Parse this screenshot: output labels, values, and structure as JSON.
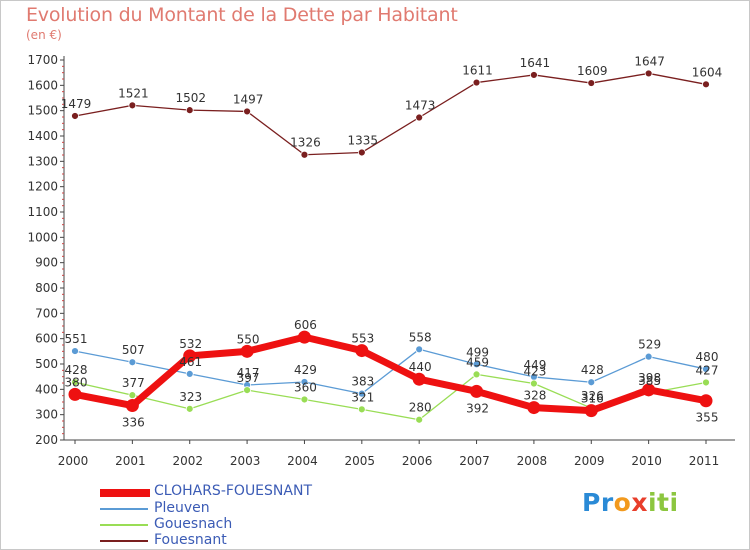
{
  "title": "Evolution du Montant de la Dette par Habitant",
  "subtitle": "(en €)",
  "logo": {
    "parts": [
      "Pr",
      "o",
      "x",
      "iti"
    ],
    "colors": [
      "#2a8ad6",
      "#f29a1e",
      "#e83e2b",
      "#8cc63f"
    ]
  },
  "chart_data": {
    "type": "line",
    "x": [
      "2000",
      "2001",
      "2002",
      "2003",
      "2004",
      "2005",
      "2006",
      "2007",
      "2008",
      "2009",
      "2010",
      "2011"
    ],
    "ylim": [
      200,
      1700
    ],
    "yticks": [
      "200",
      "300",
      "400",
      "500",
      "600",
      "700",
      "800",
      "900",
      "1000",
      "1100",
      "1200",
      "1300",
      "1400",
      "1500",
      "1600",
      "1700"
    ],
    "grid": false,
    "legend_position": "bottom-left",
    "series": [
      {
        "name": "CLOHARS-FOUESNANT",
        "color": "#ee1111",
        "values": [
          380,
          336,
          532,
          550,
          606,
          553,
          440,
          392,
          328,
          316,
          398,
          355
        ],
        "labels": [
          "380",
          "336",
          "532",
          "550",
          "606",
          "553",
          "440",
          "392",
          "328",
          "316",
          "398",
          "355"
        ],
        "label_pos": [
          "above",
          "below",
          "above",
          "above",
          "above",
          "above",
          "above",
          "below",
          "above",
          "above",
          "above",
          "below"
        ]
      },
      {
        "name": "Pleuven",
        "color": "#5b9bd5",
        "values": [
          551,
          507,
          461,
          417,
          429,
          383,
          558,
          499,
          449,
          428,
          529,
          480
        ],
        "labels": [
          "551",
          "507",
          "461",
          "417",
          "429",
          "383",
          "558",
          "499",
          "449",
          "428",
          "529",
          "480"
        ],
        "label_pos": [
          "above",
          "above",
          "above",
          "above",
          "above",
          "above",
          "above",
          "above",
          "above",
          "above",
          "above",
          "above"
        ]
      },
      {
        "name": "Gouesnach",
        "color": "#99dd55",
        "values": [
          428,
          377,
          323,
          397,
          360,
          321,
          280,
          459,
          423,
          326,
          385,
          427
        ],
        "labels": [
          "428",
          "377",
          "323",
          "397",
          "360",
          "321",
          "280",
          "459",
          "423",
          "326",
          "385",
          "427"
        ],
        "label_pos": [
          "above",
          "above",
          "above",
          "above",
          "above",
          "above",
          "above",
          "above",
          "above",
          "above",
          "above",
          "above"
        ]
      },
      {
        "name": "Fouesnant",
        "color": "#7a1f1f",
        "values": [
          1479,
          1521,
          1502,
          1497,
          1326,
          1335,
          1473,
          1611,
          1641,
          1609,
          1647,
          1604
        ],
        "labels": [
          "1479",
          "1521",
          "1502",
          "1497",
          "1326",
          "1335",
          "1473",
          "1611",
          "1641",
          "1609",
          "1647",
          "1604"
        ],
        "label_pos": [
          "above",
          "above",
          "above",
          "above",
          "above",
          "above",
          "above",
          "above",
          "above",
          "above",
          "above",
          "above"
        ]
      }
    ]
  }
}
